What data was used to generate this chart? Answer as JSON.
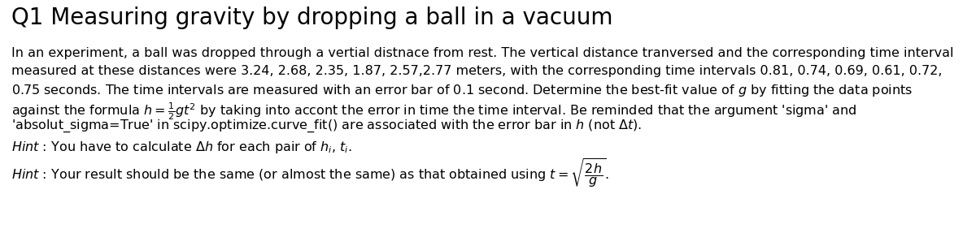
{
  "title": "Q1 Measuring gravity by dropping a ball in a vacuum",
  "background_color": "#ffffff",
  "text_color": "#000000",
  "fig_width": 12.0,
  "fig_height": 3.08,
  "dpi": 100,
  "title_fontsize": 20,
  "body_fontsize": 11.5,
  "hint_fontsize": 11.5,
  "line1": "In an experiment, a ball was dropped through a vertial distnace from rest. The vertical distance tranversed and the corresponding time interval",
  "line2": "measured at these distances were 3.24, 2.68, 2.35, 1.87, 2.57,2.77 meters, with the corresponding time intervals 0.81, 0.74, 0.69, 0.61, 0.72,",
  "line3": "0.75 seconds. The time intervals are measured with an error bar of 0.1 second. Determine the best-fit value of $g$ by fitting the data points",
  "line4": "against the formula $h = \\frac{1}{2}gt^2$ by taking into accont the error in time the time interval. Be reminded that the argument 'sigma' and",
  "line5": "'absolut_sigma=True' in scipy.optimize.curve_fit() are associated with the error bar in $h$ (not $\\Delta t$).",
  "hint1": "$\\mathit{Hint}$ : You have to calculate $\\Delta h$ for each pair of $h_i$, $t_i$.",
  "hint2": "$\\mathit{Hint}$ : Your result should be the same (or almost the same) as that obtained using $t = \\sqrt{\\dfrac{2h}{g}}$."
}
